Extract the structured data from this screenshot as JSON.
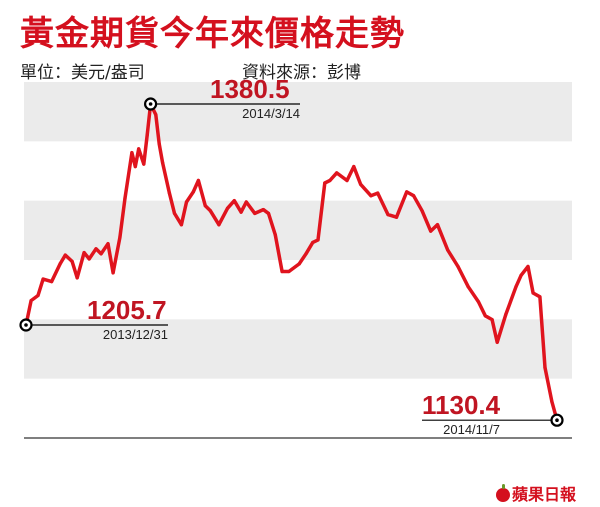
{
  "title": "黃金期貨今年來價格走勢",
  "subtitle_unit": "單位：美元/盎司",
  "subtitle_source": "資料來源：彭博",
  "logo_text": "蘋果日報",
  "colors": {
    "line": "#e0141e",
    "title": "#d4101e",
    "band": "#ebebeb",
    "label": "#c01522"
  },
  "chart_data": {
    "type": "line",
    "title": "黃金期貨今年來價格走勢",
    "ylabel": "美元/盎司",
    "xlabel": "",
    "x_range": [
      "2013-12-31",
      "2014-11-07"
    ],
    "ylim": [
      1110,
      1410
    ],
    "grid": "horizontal bands",
    "series": [
      {
        "name": "",
        "points": [
          [
            "2013-12-31",
            1205.7
          ],
          [
            "2014-01-03",
            1225
          ],
          [
            "2014-01-07",
            1229
          ],
          [
            "2014-01-10",
            1242
          ],
          [
            "2014-01-15",
            1240
          ],
          [
            "2014-01-20",
            1254
          ],
          [
            "2014-01-23",
            1261
          ],
          [
            "2014-01-27",
            1256
          ],
          [
            "2014-01-30",
            1243
          ],
          [
            "2014-02-03",
            1263
          ],
          [
            "2014-02-06",
            1258
          ],
          [
            "2014-02-10",
            1266
          ],
          [
            "2014-02-13",
            1262
          ],
          [
            "2014-02-17",
            1270
          ],
          [
            "2014-02-20",
            1247
          ],
          [
            "2014-02-24",
            1275
          ],
          [
            "2014-02-27",
            1306
          ],
          [
            "2014-03-03",
            1342
          ],
          [
            "2014-03-05",
            1331
          ],
          [
            "2014-03-07",
            1345
          ],
          [
            "2014-03-10",
            1333
          ],
          [
            "2014-03-12",
            1356
          ],
          [
            "2014-03-14",
            1380.5
          ],
          [
            "2014-03-17",
            1372
          ],
          [
            "2014-03-19",
            1349
          ],
          [
            "2014-03-21",
            1334
          ],
          [
            "2014-03-25",
            1310
          ],
          [
            "2014-03-28",
            1294
          ],
          [
            "2014-04-01",
            1285
          ],
          [
            "2014-04-04",
            1303
          ],
          [
            "2014-04-08",
            1311
          ],
          [
            "2014-04-11",
            1320
          ],
          [
            "2014-04-15",
            1300
          ],
          [
            "2014-04-18",
            1296
          ],
          [
            "2014-04-23",
            1285
          ],
          [
            "2014-04-28",
            1298
          ],
          [
            "2014-05-02",
            1304
          ],
          [
            "2014-05-06",
            1295
          ],
          [
            "2014-05-09",
            1303
          ],
          [
            "2014-05-14",
            1294
          ],
          [
            "2014-05-19",
            1297
          ],
          [
            "2014-05-22",
            1294
          ],
          [
            "2014-05-26",
            1277
          ],
          [
            "2014-05-30",
            1248
          ],
          [
            "2014-06-03",
            1248
          ],
          [
            "2014-06-09",
            1254
          ],
          [
            "2014-06-13",
            1262
          ],
          [
            "2014-06-17",
            1271
          ],
          [
            "2014-06-20",
            1273
          ],
          [
            "2014-06-24",
            1318
          ],
          [
            "2014-06-27",
            1320
          ],
          [
            "2014-07-01",
            1326
          ],
          [
            "2014-07-07",
            1320
          ],
          [
            "2014-07-11",
            1331
          ],
          [
            "2014-07-15",
            1317
          ],
          [
            "2014-07-21",
            1308
          ],
          [
            "2014-07-25",
            1310
          ],
          [
            "2014-07-31",
            1293
          ],
          [
            "2014-08-05",
            1291
          ],
          [
            "2014-08-11",
            1311
          ],
          [
            "2014-08-15",
            1308
          ],
          [
            "2014-08-20",
            1296
          ],
          [
            "2014-08-25",
            1280
          ],
          [
            "2014-08-29",
            1285
          ],
          [
            "2014-09-04",
            1265
          ],
          [
            "2014-09-10",
            1252
          ],
          [
            "2014-09-16",
            1236
          ],
          [
            "2014-09-22",
            1224
          ],
          [
            "2014-09-26",
            1213
          ],
          [
            "2014-09-30",
            1210
          ],
          [
            "2014-10-03",
            1192
          ],
          [
            "2014-10-08",
            1214
          ],
          [
            "2014-10-14",
            1236
          ],
          [
            "2014-10-17",
            1245
          ],
          [
            "2014-10-21",
            1252
          ],
          [
            "2014-10-24",
            1231
          ],
          [
            "2014-10-28",
            1228
          ],
          [
            "2014-10-31",
            1172
          ],
          [
            "2014-11-04",
            1145
          ],
          [
            "2014-11-07",
            1130.4
          ]
        ]
      }
    ],
    "annotations": [
      {
        "date": "2013-12-31",
        "value": "1205.7",
        "date_label": "2013/12/31"
      },
      {
        "date": "2014-03-14",
        "value": "1380.5",
        "date_label": "2014/3/14"
      },
      {
        "date": "2014-11-07",
        "value": "1130.4",
        "date_label": "2014/11/7"
      }
    ]
  }
}
